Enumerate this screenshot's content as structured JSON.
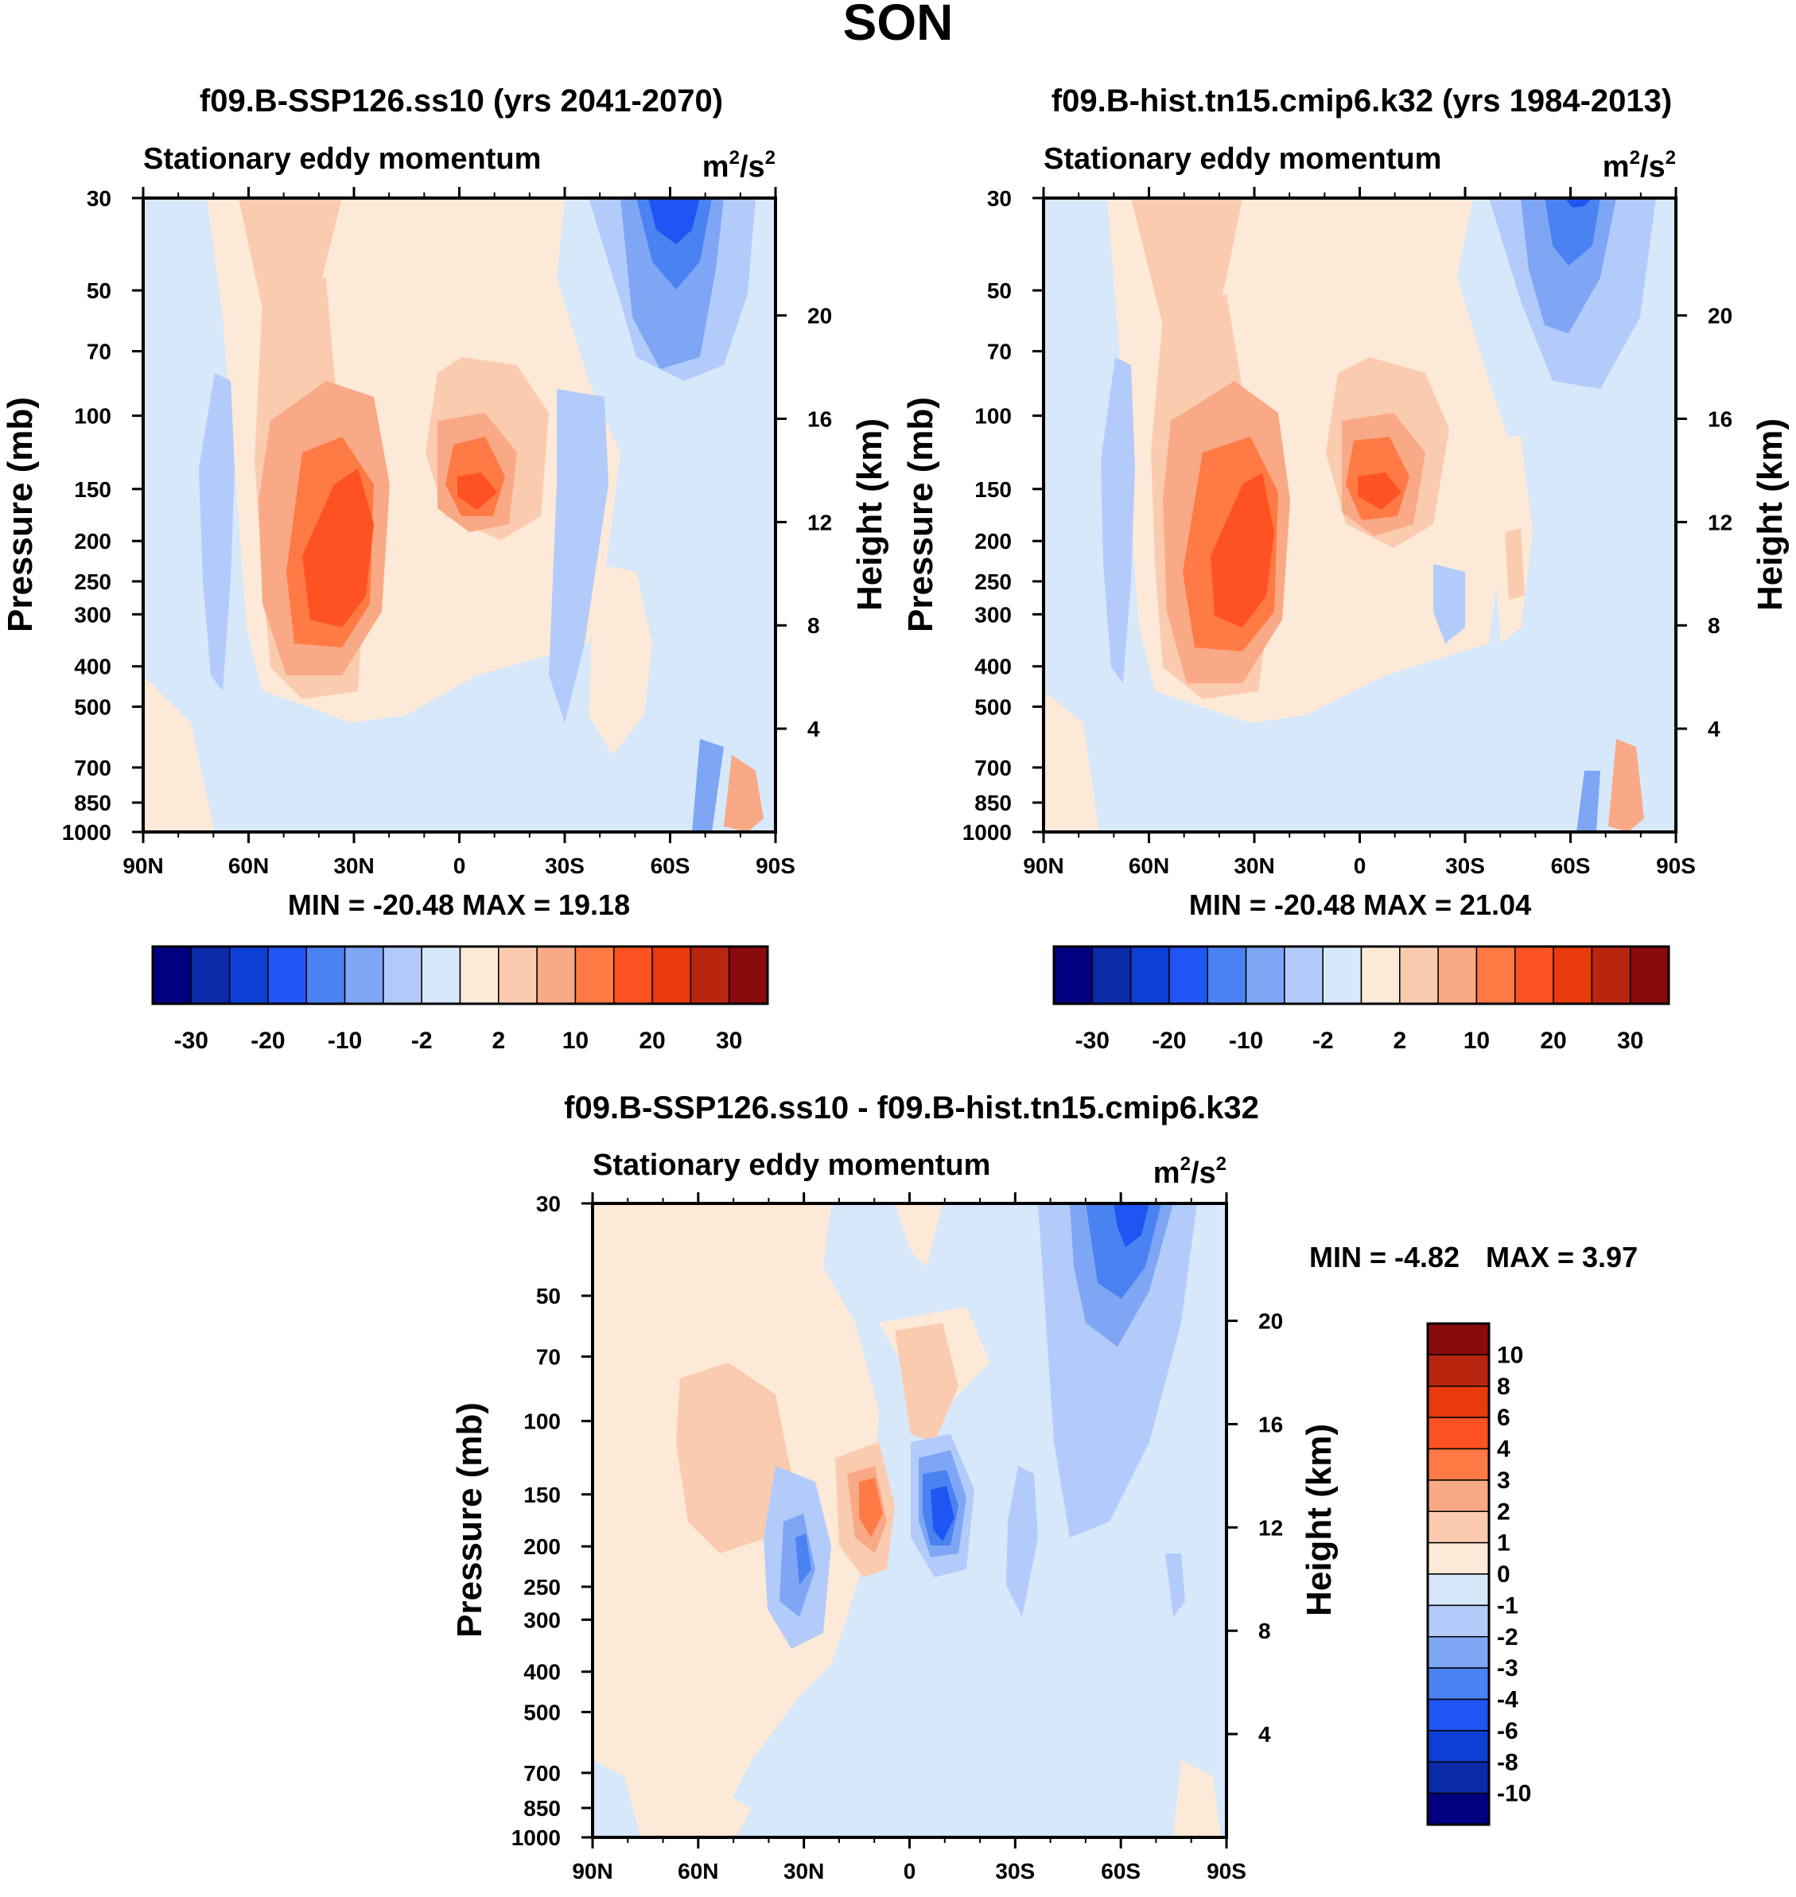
{
  "figure": {
    "season": "SON"
  },
  "colors": {
    "diverging": [
      "#000080",
      "#0a2aa8",
      "#0d3fd6",
      "#1f55f2",
      "#4b82f2",
      "#7ea6f5",
      "#b3cbfa",
      "#d7e8fb",
      "#fde9d7",
      "#fbcbb0",
      "#f9a985",
      "#ff7a45",
      "#ff5222",
      "#e83a0a",
      "#b92610",
      "#8a0b0b"
    ]
  },
  "chart_data": [
    {
      "type": "heatmap",
      "id": "panel1",
      "title": "f09.B-SSP126.ss10 (yrs 2041-2070)",
      "left_label": "Stationary eddy momentum",
      "units_base": "m",
      "units_exp1": "2",
      "units_sep": "/s",
      "units_exp2": "2",
      "ylabel": "Pressure (mb)",
      "ylabel_right": "Height (km)",
      "xlabel": "",
      "x_ticks": [
        "90N",
        "60N",
        "30N",
        "0",
        "30S",
        "60S",
        "90S"
      ],
      "x_tick_values": [
        90,
        60,
        30,
        0,
        -30,
        -60,
        -90
      ],
      "y_ticks": [
        30,
        50,
        70,
        100,
        150,
        200,
        250,
        300,
        400,
        500,
        700,
        850,
        1000
      ],
      "y_ticks_right": [
        20,
        16,
        12,
        8,
        4
      ],
      "ylim": [
        30,
        1000
      ],
      "stats": "MIN = -20.48  MAX =  19.18",
      "min": -20.48,
      "max": 19.18,
      "colorbar_labels": [
        "-30",
        "-20",
        "-10",
        "-2",
        "2",
        "10",
        "20",
        "30"
      ],
      "features": [
        {
          "lat": 30,
          "p": 200,
          "value": 19
        },
        {
          "lat": -5,
          "p": 150,
          "value": 12
        },
        {
          "lat": -60,
          "p": 35,
          "value": -15
        },
        {
          "lat": 68,
          "p": 200,
          "value": -3
        }
      ]
    },
    {
      "type": "heatmap",
      "id": "panel2",
      "title": "f09.B-hist.tn15.cmip6.k32 (yrs 1984-2013)",
      "left_label": "Stationary eddy momentum",
      "units_base": "m",
      "units_exp1": "2",
      "units_sep": "/s",
      "units_exp2": "2",
      "ylabel": "Pressure (mb)",
      "ylabel_right": "Height (km)",
      "x_ticks": [
        "90N",
        "60N",
        "30N",
        "0",
        "30S",
        "60S",
        "90S"
      ],
      "x_tick_values": [
        90,
        60,
        30,
        0,
        -30,
        -60,
        -90
      ],
      "y_ticks": [
        30,
        50,
        70,
        100,
        150,
        200,
        250,
        300,
        400,
        500,
        700,
        850,
        1000
      ],
      "y_ticks_right": [
        20,
        16,
        12,
        8,
        4
      ],
      "ylim": [
        30,
        1000
      ],
      "stats": "MIN = -20.48  MAX =  21.04",
      "min": -20.48,
      "max": 21.04,
      "colorbar_labels": [
        "-30",
        "-20",
        "-10",
        "-2",
        "2",
        "10",
        "20",
        "30"
      ],
      "features": [
        {
          "lat": 30,
          "p": 200,
          "value": 21
        },
        {
          "lat": -5,
          "p": 150,
          "value": 14
        },
        {
          "lat": -55,
          "p": 35,
          "value": -10
        },
        {
          "lat": 68,
          "p": 200,
          "value": -3
        }
      ]
    },
    {
      "type": "heatmap",
      "id": "panel3",
      "title": "f09.B-SSP126.ss10 - f09.B-hist.tn15.cmip6.k32",
      "left_label": "Stationary eddy momentum",
      "units_base": "m",
      "units_exp1": "2",
      "units_sep": "/s",
      "units_exp2": "2",
      "ylabel": "Pressure (mb)",
      "ylabel_right": "Height (km)",
      "x_ticks": [
        "90N",
        "60N",
        "30N",
        "0",
        "30S",
        "60S",
        "90S"
      ],
      "x_tick_values": [
        90,
        60,
        30,
        0,
        -30,
        -60,
        -90
      ],
      "y_ticks": [
        30,
        50,
        70,
        100,
        150,
        200,
        250,
        300,
        400,
        500,
        700,
        850,
        1000
      ],
      "y_ticks_right": [
        20,
        16,
        12,
        8,
        4
      ],
      "ylim": [
        30,
        1000
      ],
      "stats_min": "MIN =  -4.82",
      "stats_max": "MAX =   3.97",
      "min": -4.82,
      "max": 3.97,
      "colorbar_labels": [
        "10",
        "8",
        "6",
        "4",
        "3",
        "2",
        "1",
        "0",
        "-1",
        "-2",
        "-3",
        "-4",
        "-6",
        "-8",
        "-10"
      ],
      "features": [
        {
          "lat": 10,
          "p": 150,
          "value": 3.9
        },
        {
          "lat": -10,
          "p": 170,
          "value": -4.8
        },
        {
          "lat": 30,
          "p": 280,
          "value": -2.5
        },
        {
          "lat": -62,
          "p": 40,
          "value": -4.5
        }
      ]
    }
  ]
}
